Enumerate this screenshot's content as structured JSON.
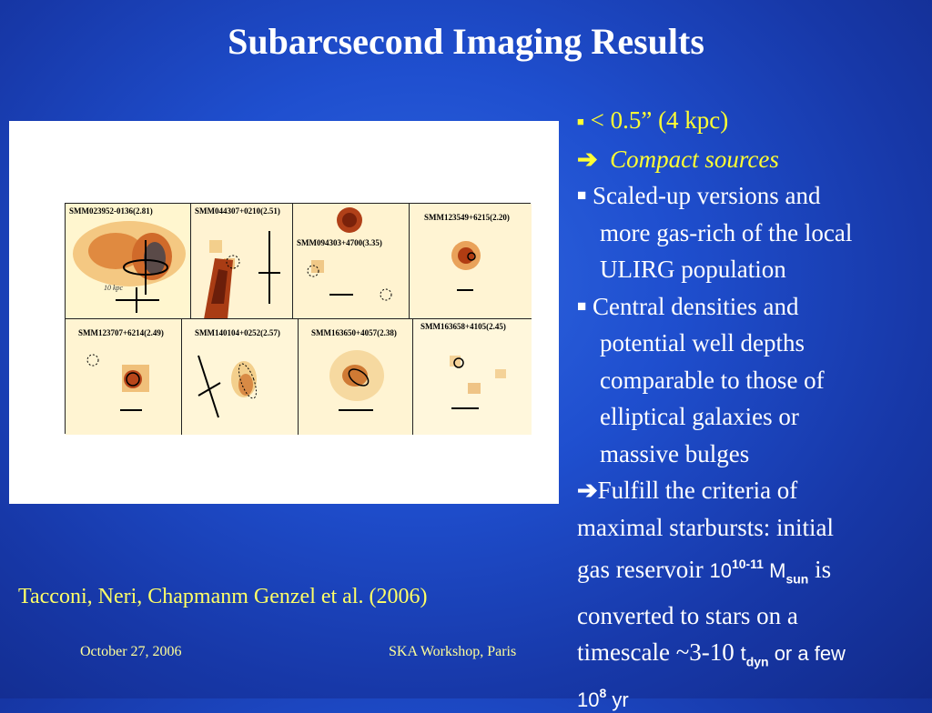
{
  "slide": {
    "title": "Subarcsecond Imaging Results",
    "citation": "Tacconi, Neri, Chapmanm Genzel et al. (2006)",
    "footer_date": "October 27, 2006",
    "footer_event": "SKA Workshop, Paris"
  },
  "figure": {
    "panels": [
      {
        "label": "SMM023952-0136(2.81)"
      },
      {
        "label": "SMM044307+0210(2.51)"
      },
      {
        "label": "SMM094303+4700(3.35)"
      },
      {
        "label": "SMM123549+6215(2.20)"
      },
      {
        "label": "SMM123707+6214(2.49)"
      },
      {
        "label": "SMM140104+0252(2.57)"
      },
      {
        "label": "SMM163650+4057(2.38)"
      },
      {
        "label": "SMM163658+4105(2.45)"
      }
    ],
    "scale_label": "10 kpc"
  },
  "bullets": {
    "b1": "< 0.5” (4 kpc)",
    "arrow1_text": "Compact sources",
    "b2_l1": "Scaled-up versions and",
    "b2_l2": "more gas-rich of the local",
    "b2_l3": "ULIRG population",
    "b3_l1": "Central densities and",
    "b3_l2": "potential well depths",
    "b3_l3": "comparable to those of",
    "b3_l4": "elliptical galaxies or",
    "b3_l5": "massive bulges",
    "p_l1": "Fulfill the criteria of",
    "p_l2": "maximal starbursts: initial",
    "p_l3a": "gas reservoir ",
    "p_l3b": "10",
    "p_l3c": "10-11",
    "p_l3d": " M",
    "p_l3e": "sun",
    "p_l3f": "  is",
    "p_l4": "converted to stars on a",
    "p_l5a": "timescale ~3-10 ",
    "p_l5b": "t",
    "p_l5c": "dyn",
    "p_l5d": " or a few",
    "p_l6a": "10",
    "p_l6b": "8",
    "p_l6c": " yr"
  }
}
